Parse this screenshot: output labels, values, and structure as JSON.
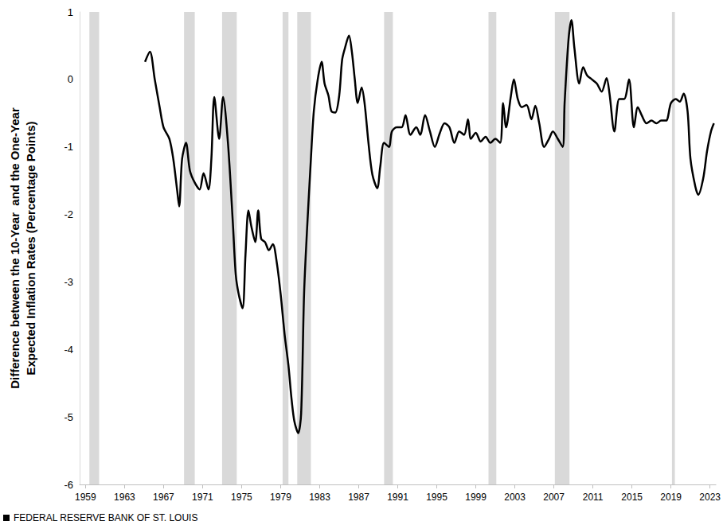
{
  "chart_data": {
    "type": "line",
    "y_label": "Difference between the 10-Year  and the One-Year\nExpected Inflation Rates (Percentage Points)",
    "footer": "FEDERAL RESERVE BANK OF ST. LOUIS",
    "color": "#000000",
    "grid": false,
    "xlim": [
      1958.4,
      2023.6
    ],
    "xticks": [
      1959,
      1963,
      1967,
      1971,
      1975,
      1979,
      1983,
      1987,
      1991,
      1995,
      1999,
      2003,
      2007,
      2011,
      2015,
      2019,
      2023
    ],
    "ylim": [
      -6,
      1
    ],
    "yticks": [
      -6,
      -5,
      -4,
      -3,
      -2,
      -1,
      0,
      1
    ],
    "recessions": [
      [
        1959.4,
        1960.4
      ],
      [
        1969.1,
        1970.2
      ],
      [
        1973.0,
        1974.5
      ],
      [
        1979.2,
        1979.8
      ],
      [
        1980.7,
        1982.1
      ],
      [
        1989.6,
        1990.5
      ],
      [
        2000.3,
        2001.1
      ],
      [
        2007.1,
        2008.6
      ],
      [
        2019.1,
        2019.4
      ]
    ],
    "x": [
      1965.1,
      1965.6,
      1966.1,
      1966.6,
      1967.0,
      1967.6,
      1968.0,
      1968.4,
      1968.6,
      1968.9,
      1969.3,
      1969.7,
      1970.2,
      1970.7,
      1971.1,
      1971.6,
      1971.9,
      1972.2,
      1972.7,
      1973.1,
      1973.6,
      1974.1,
      1974.4,
      1974.7,
      1975.1,
      1975.4,
      1975.7,
      1976.0,
      1976.4,
      1976.7,
      1977.0,
      1977.4,
      1977.8,
      1978.2,
      1978.6,
      1979.0,
      1979.4,
      1979.8,
      1980.1,
      1980.4,
      1980.8,
      1981.1,
      1981.4,
      1981.7,
      1982.1,
      1982.4,
      1982.8,
      1983.2,
      1983.5,
      1983.9,
      1984.2,
      1984.6,
      1985.0,
      1985.3,
      1985.6,
      1986.0,
      1986.3,
      1986.6,
      1986.9,
      1987.3,
      1987.6,
      1988.0,
      1988.4,
      1988.9,
      1989.2,
      1989.6,
      1990.1,
      1990.4,
      1990.9,
      1991.4,
      1991.8,
      1992.3,
      1992.9,
      1993.3,
      1993.8,
      1994.3,
      1994.8,
      1995.3,
      1995.8,
      1996.3,
      1996.8,
      1997.3,
      1997.8,
      1998.2,
      1998.5,
      1999.0,
      1999.5,
      2000.0,
      2000.5,
      2001.0,
      2001.5,
      2001.8,
      2002.1,
      2002.6,
      2002.9,
      2003.3,
      2003.7,
      2004.2,
      2004.7,
      2005.1,
      2005.5,
      2006.0,
      2006.5,
      2006.9,
      2007.4,
      2007.9,
      2008.1,
      2008.5,
      2008.8,
      2009.1,
      2009.6,
      2010.0,
      2010.4,
      2010.9,
      2011.4,
      2011.9,
      2012.4,
      2012.7,
      2013.2,
      2013.7,
      2014.2,
      2014.7,
      2015.2,
      2015.6,
      2016.0,
      2016.5,
      2017.0,
      2017.5,
      2018.0,
      2018.5,
      2019.0,
      2019.5,
      2019.9,
      2020.3,
      2020.7,
      2021.0,
      2021.5,
      2021.8,
      2022.3,
      2022.7,
      2023.1,
      2023.4
    ],
    "values": [
      0.26,
      0.41,
      0,
      -0.41,
      -0.71,
      -0.88,
      -1.18,
      -1.65,
      -1.88,
      -1.18,
      -0.94,
      -1.35,
      -1.53,
      -1.63,
      -1.39,
      -1.63,
      -1.18,
      -0.26,
      -0.88,
      -0.26,
      -0.94,
      -2.12,
      -2.89,
      -3.18,
      -3.39,
      -2.59,
      -1.94,
      -2.18,
      -2.41,
      -1.94,
      -2.36,
      -2.41,
      -2.53,
      -2.44,
      -2.71,
      -3.18,
      -3.77,
      -4.24,
      -4.71,
      -5.06,
      -5.24,
      -4.95,
      -3.18,
      -2.24,
      -1.18,
      -0.47,
      0,
      0.26,
      -0.06,
      -0.24,
      -0.47,
      -0.49,
      -0.24,
      0.29,
      0.47,
      0.65,
      0.41,
      0,
      -0.35,
      -0.12,
      -0.35,
      -0.94,
      -1.41,
      -1.61,
      -1.3,
      -0.94,
      -1.0,
      -0.77,
      -0.71,
      -0.71,
      -0.53,
      -0.82,
      -0.71,
      -0.82,
      -0.53,
      -0.77,
      -1.0,
      -0.8,
      -0.65,
      -0.71,
      -0.94,
      -0.77,
      -0.82,
      -0.59,
      -0.88,
      -0.79,
      -0.92,
      -0.85,
      -0.94,
      -0.88,
      -0.94,
      -0.35,
      -0.71,
      -0.24,
      0,
      -0.29,
      -0.41,
      -0.38,
      -0.59,
      -0.39,
      -0.65,
      -1.0,
      -0.88,
      -0.77,
      -0.88,
      -1.0,
      -0.35,
      0.59,
      0.88,
      0.47,
      -0.06,
      0.18,
      0.06,
      0,
      -0.06,
      -0.18,
      0.02,
      -0.21,
      -0.77,
      -0.29,
      -0.29,
      0,
      -0.71,
      -0.41,
      -0.53,
      -0.65,
      -0.61,
      -0.65,
      -0.61,
      -0.61,
      -0.35,
      -0.29,
      -0.33,
      -0.21,
      -0.47,
      -1.18,
      -1.59,
      -1.71,
      -1.47,
      -1.06,
      -0.77,
      -0.65
    ]
  }
}
